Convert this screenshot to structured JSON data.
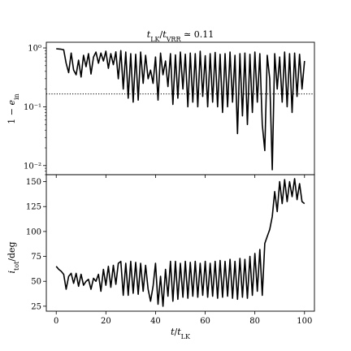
{
  "chart_data": [
    {
      "type": "line",
      "title": "t_LK / t_VRR ≃ 0.11",
      "xlabel": "",
      "ylabel": "1 − e_in",
      "yscale": "log",
      "xlim": [
        -4,
        104
      ],
      "ylim": [
        0.007,
        1.25
      ],
      "yticks": [
        0.01,
        0.1,
        1
      ],
      "ytick_labels": [
        "10⁻²",
        "10⁻¹",
        "10⁰"
      ],
      "grid": false,
      "reference_line": {
        "y": 0.165,
        "style": "dotted"
      },
      "series": [
        {
          "x": [
            0,
            1,
            2,
            3,
            4,
            5,
            6,
            7,
            8,
            9,
            10,
            11,
            12,
            13,
            14,
            15,
            16,
            17,
            18,
            19,
            20,
            21,
            22,
            23,
            24,
            25,
            26,
            27,
            28,
            29,
            30,
            31,
            32,
            33,
            34,
            35,
            36,
            37,
            38,
            39,
            40,
            41,
            42,
            43,
            44,
            45,
            46,
            47,
            48,
            49,
            50,
            51,
            52,
            53,
            54,
            55,
            56,
            57,
            58,
            59,
            60,
            61,
            62,
            63,
            64,
            65,
            66,
            67,
            68,
            69,
            70,
            71,
            72,
            73,
            74,
            75,
            76,
            77,
            78,
            79,
            80,
            81,
            82,
            83,
            84,
            85,
            86,
            87,
            88,
            89,
            90,
            91,
            92,
            93,
            94,
            95,
            96,
            97,
            98,
            99,
            100
          ],
          "y": [
            0.97,
            0.96,
            0.95,
            0.93,
            0.55,
            0.38,
            0.82,
            0.42,
            0.35,
            0.62,
            0.32,
            0.75,
            0.48,
            0.8,
            0.36,
            0.7,
            0.85,
            0.55,
            0.82,
            0.6,
            0.88,
            0.45,
            0.8,
            0.52,
            0.86,
            0.3,
            0.9,
            0.2,
            0.85,
            0.14,
            0.8,
            0.12,
            0.78,
            0.13,
            0.85,
            0.25,
            0.75,
            0.3,
            0.42,
            0.25,
            0.7,
            0.13,
            0.82,
            0.35,
            0.6,
            0.22,
            0.8,
            0.11,
            0.76,
            0.14,
            0.85,
            0.2,
            0.78,
            0.1,
            0.82,
            0.12,
            0.8,
            0.1,
            0.88,
            0.15,
            0.74,
            0.1,
            0.8,
            0.12,
            0.84,
            0.1,
            0.78,
            0.08,
            0.8,
            0.1,
            0.85,
            0.12,
            0.75,
            0.035,
            0.8,
            0.07,
            0.82,
            0.05,
            0.78,
            0.08,
            0.85,
            0.12,
            0.8,
            0.05,
            0.018,
            0.75,
            0.3,
            0.0085,
            0.8,
            0.2,
            0.7,
            0.12,
            0.85,
            0.1,
            0.8,
            0.08,
            0.82,
            0.15,
            0.78,
            0.2,
            0.6
          ]
        }
      ]
    },
    {
      "type": "line",
      "title": "",
      "xlabel": "t / t_LK",
      "ylabel": "i_tot / deg",
      "xlim": [
        -4,
        104
      ],
      "ylim": [
        20,
        157
      ],
      "xticks": [
        0,
        20,
        40,
        60,
        80,
        100
      ],
      "yticks": [
        25,
        50,
        75,
        100,
        125,
        150
      ],
      "grid": false,
      "series": [
        {
          "x": [
            0,
            1,
            2,
            3,
            4,
            5,
            6,
            7,
            8,
            9,
            10,
            11,
            12,
            13,
            14,
            15,
            16,
            17,
            18,
            19,
            20,
            21,
            22,
            23,
            24,
            25,
            26,
            27,
            28,
            29,
            30,
            31,
            32,
            33,
            34,
            35,
            36,
            37,
            38,
            39,
            40,
            41,
            42,
            43,
            44,
            45,
            46,
            47,
            48,
            49,
            50,
            51,
            52,
            53,
            54,
            55,
            56,
            57,
            58,
            59,
            60,
            61,
            62,
            63,
            64,
            65,
            66,
            67,
            68,
            69,
            70,
            71,
            72,
            73,
            74,
            75,
            76,
            77,
            78,
            79,
            80,
            81,
            82,
            83,
            84,
            85,
            86,
            87,
            88,
            89,
            90,
            91,
            92,
            93,
            94,
            95,
            96,
            97,
            98,
            99,
            100
          ],
          "y": [
            65,
            62,
            60,
            57,
            42,
            55,
            58,
            48,
            58,
            45,
            57,
            46,
            50,
            52,
            42,
            53,
            50,
            57,
            40,
            62,
            46,
            65,
            44,
            66,
            47,
            68,
            70,
            36,
            68,
            36,
            70,
            38,
            69,
            37,
            68,
            40,
            66,
            42,
            30,
            45,
            68,
            27,
            55,
            25,
            62,
            35,
            70,
            30,
            70,
            32,
            68,
            34,
            70,
            33,
            69,
            35,
            70,
            34,
            68,
            36,
            70,
            34,
            68,
            35,
            70,
            33,
            71,
            34,
            70,
            35,
            72,
            33,
            70,
            32,
            73,
            34,
            72,
            33,
            75,
            36,
            78,
            40,
            82,
            36,
            88,
            95,
            102,
            115,
            140,
            120,
            150,
            128,
            152,
            130,
            150,
            135,
            153,
            132,
            148,
            130,
            128
          ]
        }
      ]
    }
  ]
}
